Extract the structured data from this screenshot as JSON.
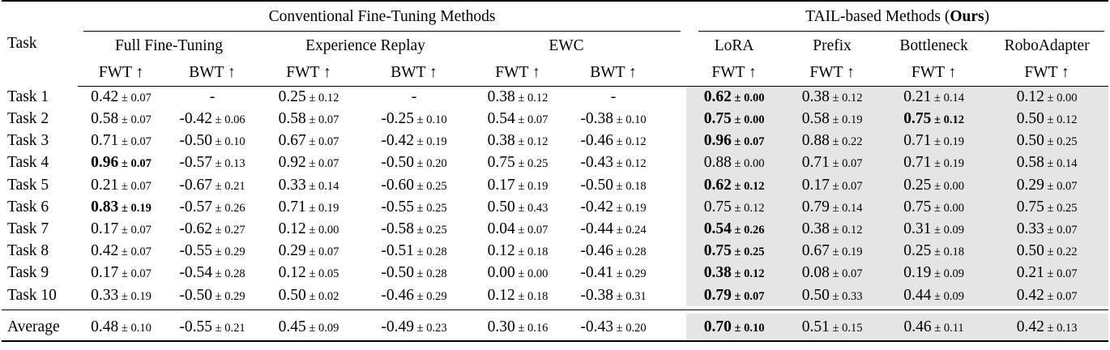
{
  "table": {
    "task_header": "Task",
    "groups": {
      "conventional": "Conventional Fine-Tuning Methods",
      "tail_pre": "TAIL-based Methods (",
      "tail_bold": "Ours",
      "tail_post": ")"
    },
    "shade_color": "#e5e5e5",
    "methods": [
      {
        "name": "Full Fine-Tuning",
        "group": "conventional",
        "metrics": [
          "FWT ↑",
          "BWT ↑"
        ]
      },
      {
        "name": "Experience Replay",
        "group": "conventional",
        "metrics": [
          "FWT ↑",
          "BWT ↑"
        ]
      },
      {
        "name": "EWC",
        "group": "conventional",
        "metrics": [
          "FWT ↑",
          "BWT ↑"
        ]
      },
      {
        "name": "LoRA",
        "group": "tail",
        "metrics": [
          "FWT ↑"
        ]
      },
      {
        "name": "Prefix",
        "group": "tail",
        "metrics": [
          "FWT ↑"
        ]
      },
      {
        "name": "Bottleneck",
        "group": "tail",
        "metrics": [
          "FWT ↑"
        ]
      },
      {
        "name": "RoboAdapter",
        "group": "tail",
        "metrics": [
          "FWT ↑"
        ]
      }
    ],
    "rows": [
      {
        "task": "Task 1",
        "cells": [
          {
            "m": "0.42",
            "s": "0.07"
          },
          {
            "m": "-"
          },
          {
            "m": "0.25",
            "s": "0.12"
          },
          {
            "m": "-"
          },
          {
            "m": "0.38",
            "s": "0.12"
          },
          {
            "m": "-"
          },
          {
            "m": "0.62",
            "s": "0.00",
            "b": true
          },
          {
            "m": "0.38",
            "s": "0.12"
          },
          {
            "m": "0.21",
            "s": "0.14"
          },
          {
            "m": "0.12",
            "s": "0.00"
          }
        ]
      },
      {
        "task": "Task 2",
        "cells": [
          {
            "m": "0.58",
            "s": "0.07"
          },
          {
            "m": "-0.42",
            "s": "0.06"
          },
          {
            "m": "0.58",
            "s": "0.07"
          },
          {
            "m": "-0.25",
            "s": "0.10"
          },
          {
            "m": "0.54",
            "s": "0.07"
          },
          {
            "m": "-0.38",
            "s": "0.10"
          },
          {
            "m": "0.75",
            "s": "0.00",
            "b": true
          },
          {
            "m": "0.58",
            "s": "0.19"
          },
          {
            "m": "0.75",
            "s": "0.12",
            "b": true
          },
          {
            "m": "0.50",
            "s": "0.12"
          }
        ]
      },
      {
        "task": "Task 3",
        "cells": [
          {
            "m": "0.71",
            "s": "0.07"
          },
          {
            "m": "-0.50",
            "s": "0.10"
          },
          {
            "m": "0.67",
            "s": "0.07"
          },
          {
            "m": "-0.42",
            "s": "0.19"
          },
          {
            "m": "0.38",
            "s": "0.12"
          },
          {
            "m": "-0.46",
            "s": "0.12"
          },
          {
            "m": "0.96",
            "s": "0.07",
            "b": true
          },
          {
            "m": "0.88",
            "s": "0.22"
          },
          {
            "m": "0.71",
            "s": "0.19"
          },
          {
            "m": "0.50",
            "s": "0.25"
          }
        ]
      },
      {
        "task": "Task 4",
        "cells": [
          {
            "m": "0.96",
            "s": "0.07",
            "b": true
          },
          {
            "m": "-0.57",
            "s": "0.13"
          },
          {
            "m": "0.92",
            "s": "0.07"
          },
          {
            "m": "-0.50",
            "s": "0.20"
          },
          {
            "m": "0.75",
            "s": "0.25"
          },
          {
            "m": "-0.43",
            "s": "0.12"
          },
          {
            "m": "0.88",
            "s": "0.00"
          },
          {
            "m": "0.71",
            "s": "0.07"
          },
          {
            "m": "0.71",
            "s": "0.19"
          },
          {
            "m": "0.58",
            "s": "0.14"
          }
        ]
      },
      {
        "task": "Task 5",
        "cells": [
          {
            "m": "0.21",
            "s": "0.07"
          },
          {
            "m": "-0.67",
            "s": "0.21"
          },
          {
            "m": "0.33",
            "s": "0.14"
          },
          {
            "m": "-0.60",
            "s": "0.25"
          },
          {
            "m": "0.17",
            "s": "0.19"
          },
          {
            "m": "-0.50",
            "s": "0.18"
          },
          {
            "m": "0.62",
            "s": "0.12",
            "b": true
          },
          {
            "m": "0.17",
            "s": "0.07"
          },
          {
            "m": "0.25",
            "s": "0.00"
          },
          {
            "m": "0.29",
            "s": "0.07"
          }
        ]
      },
      {
        "task": "Task 6",
        "cells": [
          {
            "m": "0.83",
            "s": "0.19",
            "b": true
          },
          {
            "m": "-0.57",
            "s": "0.26"
          },
          {
            "m": "0.71",
            "s": "0.19"
          },
          {
            "m": "-0.55",
            "s": "0.25"
          },
          {
            "m": "0.50",
            "s": "0.43"
          },
          {
            "m": "-0.42",
            "s": "0.19"
          },
          {
            "m": "0.75",
            "s": "0.12"
          },
          {
            "m": "0.79",
            "s": "0.14"
          },
          {
            "m": "0.75",
            "s": "0.00"
          },
          {
            "m": "0.75",
            "s": "0.25"
          }
        ]
      },
      {
        "task": "Task 7",
        "cells": [
          {
            "m": "0.17",
            "s": "0.07"
          },
          {
            "m": "-0.62",
            "s": "0.27"
          },
          {
            "m": "0.12",
            "s": "0.00"
          },
          {
            "m": "-0.58",
            "s": "0.25"
          },
          {
            "m": "0.04",
            "s": "0.07"
          },
          {
            "m": "-0.44",
            "s": "0.24"
          },
          {
            "m": "0.54",
            "s": "0.26",
            "b": true
          },
          {
            "m": "0.38",
            "s": "0.12"
          },
          {
            "m": "0.31",
            "s": "0.09"
          },
          {
            "m": "0.33",
            "s": "0.07"
          }
        ]
      },
      {
        "task": "Task 8",
        "cells": [
          {
            "m": "0.42",
            "s": "0.07"
          },
          {
            "m": "-0.55",
            "s": "0.29"
          },
          {
            "m": "0.29",
            "s": "0.07"
          },
          {
            "m": "-0.51",
            "s": "0.28"
          },
          {
            "m": "0.12",
            "s": "0.18"
          },
          {
            "m": "-0.46",
            "s": "0.28"
          },
          {
            "m": "0.75",
            "s": "0.25",
            "b": true
          },
          {
            "m": "0.67",
            "s": "0.19"
          },
          {
            "m": "0.25",
            "s": "0.18"
          },
          {
            "m": "0.50",
            "s": "0.22"
          }
        ]
      },
      {
        "task": "Task 9",
        "cells": [
          {
            "m": "0.17",
            "s": "0.07"
          },
          {
            "m": "-0.54",
            "s": "0.28"
          },
          {
            "m": "0.12",
            "s": "0.05"
          },
          {
            "m": "-0.50",
            "s": "0.28"
          },
          {
            "m": "0.00",
            "s": "0.00"
          },
          {
            "m": "-0.41",
            "s": "0.29"
          },
          {
            "m": "0.38",
            "s": "0.12",
            "b": true
          },
          {
            "m": "0.08",
            "s": "0.07"
          },
          {
            "m": "0.19",
            "s": "0.09"
          },
          {
            "m": "0.21",
            "s": "0.07"
          }
        ]
      },
      {
        "task": "Task 10",
        "cells": [
          {
            "m": "0.33",
            "s": "0.19"
          },
          {
            "m": "-0.50",
            "s": "0.29"
          },
          {
            "m": "0.50",
            "s": "0.02"
          },
          {
            "m": "-0.46",
            "s": "0.29"
          },
          {
            "m": "0.12",
            "s": "0.18"
          },
          {
            "m": "-0.38",
            "s": "0.31"
          },
          {
            "m": "0.79",
            "s": "0.07",
            "b": true
          },
          {
            "m": "0.50",
            "s": "0.33"
          },
          {
            "m": "0.44",
            "s": "0.09"
          },
          {
            "m": "0.42",
            "s": "0.07"
          }
        ]
      }
    ],
    "average": {
      "task": "Average",
      "cells": [
        {
          "m": "0.48",
          "s": "0.10"
        },
        {
          "m": "-0.55",
          "s": "0.21"
        },
        {
          "m": "0.45",
          "s": "0.09"
        },
        {
          "m": "-0.49",
          "s": "0.23"
        },
        {
          "m": "0.30",
          "s": "0.16"
        },
        {
          "m": "-0.43",
          "s": "0.20"
        },
        {
          "m": "0.70",
          "s": "0.10",
          "b": true
        },
        {
          "m": "0.51",
          "s": "0.15"
        },
        {
          "m": "0.46",
          "s": "0.11"
        },
        {
          "m": "0.42",
          "s": "0.13"
        }
      ]
    }
  }
}
